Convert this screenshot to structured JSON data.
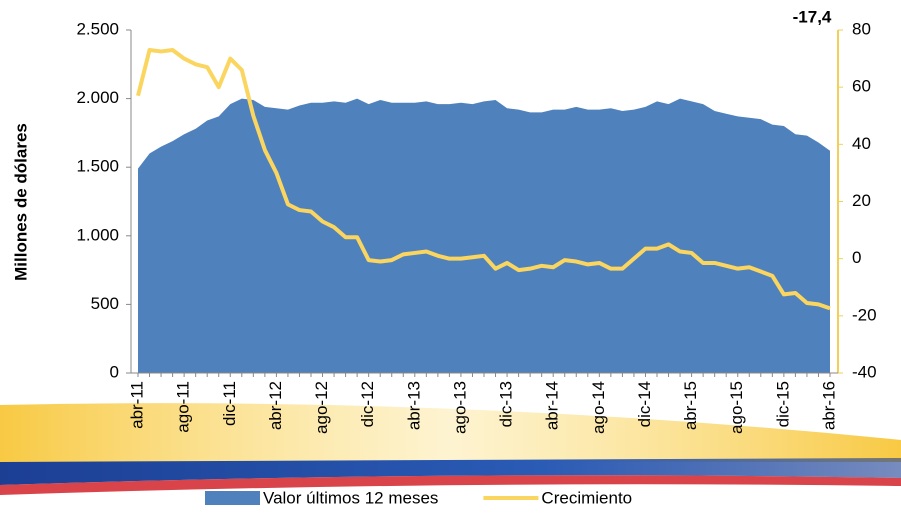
{
  "chart_data": {
    "type": "area-line",
    "y_label": "Millones de dólares",
    "annotation": "-17,4",
    "categories": [
      "abr-11",
      null,
      null,
      null,
      "ago-11",
      null,
      null,
      null,
      "dic-11",
      null,
      null,
      null,
      "abr-12",
      null,
      null,
      null,
      "ago-12",
      null,
      null,
      null,
      "dic-12",
      null,
      null,
      null,
      "abr-13",
      null,
      null,
      null,
      "ago-13",
      null,
      null,
      null,
      "dic-13",
      null,
      null,
      null,
      "abr-14",
      null,
      null,
      null,
      "ago-14",
      null,
      null,
      null,
      "dic-14",
      null,
      null,
      null,
      "abr-15",
      null,
      null,
      null,
      "ago-15",
      null,
      null,
      null,
      "dic-15",
      null,
      null,
      null,
      "abr-16"
    ],
    "series": [
      {
        "name": "Valor últimos 12 meses",
        "color": "#4f81bd",
        "kind": "area",
        "values": [
          1490,
          1600,
          1650,
          1690,
          1740,
          1780,
          1840,
          1870,
          1960,
          2000,
          1990,
          1940,
          1930,
          1920,
          1950,
          1970,
          1970,
          1980,
          1970,
          2000,
          1960,
          1990,
          1970,
          1970,
          1970,
          1980,
          1960,
          1960,
          1970,
          1960,
          1980,
          1990,
          1930,
          1920,
          1900,
          1900,
          1920,
          1920,
          1940,
          1920,
          1920,
          1930,
          1910,
          1920,
          1940,
          1980,
          1960,
          2000,
          1980,
          1960,
          1910,
          1890,
          1870,
          1860,
          1850,
          1810,
          1800,
          1740,
          1730,
          1680,
          1620
        ]
      },
      {
        "name": "Crecimiento",
        "color": "#fad55f",
        "kind": "line",
        "axis": "y2",
        "values": [
          57,
          73,
          72.5,
          73,
          70,
          68,
          67,
          60,
          70,
          66,
          50,
          38,
          30,
          19,
          17,
          16.5,
          13,
          11,
          7.5,
          7.5,
          -0.5,
          -1,
          -0.5,
          1.5,
          2,
          2.5,
          1,
          0,
          0,
          0.5,
          1,
          -3.5,
          -1.5,
          -4,
          -3.5,
          -2.5,
          -3,
          -0.5,
          -1,
          -2,
          -1.5,
          -3.5,
          -3.5,
          0,
          3.5,
          3.5,
          5,
          2.5,
          2,
          -1.5,
          -1.5,
          -2.5,
          -3.5,
          -3,
          -4.5,
          -6,
          -12.5,
          -12,
          -15.5,
          -16,
          -17.4
        ]
      }
    ],
    "ylim": [
      0,
      2500
    ],
    "yticks": [
      0,
      500,
      {
        "value": 1000,
        "label": "1.000"
      },
      {
        "value": 1500,
        "label": "1.500"
      },
      {
        "value": 2000,
        "label": "2.000"
      },
      {
        "value": 2500,
        "label": "2.500"
      }
    ],
    "y2lim": [
      -40,
      80
    ],
    "y2ticks": [
      -40,
      -20,
      0,
      20,
      40,
      60,
      80
    ]
  }
}
